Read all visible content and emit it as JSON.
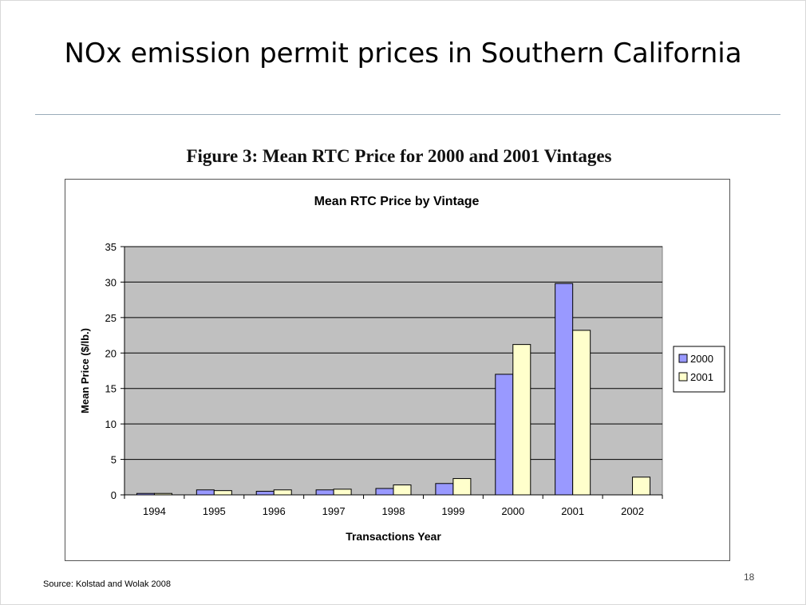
{
  "slide": {
    "title": "NOx emission permit prices in Southern California",
    "figure_title": "Figure 3: Mean RTC Price for 2000 and 2001 Vintages",
    "source": "Source: Kolstad and Wolak 2008",
    "page_number": "18"
  },
  "chart_data": {
    "type": "bar",
    "title": "Mean RTC Price by Vintage",
    "xlabel": "Transactions Year",
    "ylabel": "Mean Price ($/lb.)",
    "categories": [
      "1994",
      "1995",
      "1996",
      "1997",
      "1998",
      "1999",
      "2000",
      "2001",
      "2002"
    ],
    "series": [
      {
        "name": "2000",
        "color": "#9999ff",
        "values": [
          0.2,
          0.7,
          0.5,
          0.7,
          0.9,
          1.6,
          17.0,
          29.8,
          null
        ]
      },
      {
        "name": "2001",
        "color": "#ffffcc",
        "values": [
          0.2,
          0.6,
          0.7,
          0.8,
          1.4,
          2.3,
          21.2,
          23.2,
          2.5
        ]
      }
    ],
    "ylim": [
      0,
      35
    ],
    "yticks": [
      0,
      5,
      10,
      15,
      20,
      25,
      30,
      35
    ],
    "grid": true,
    "plot_background": "#c0c0c0",
    "legend": "right"
  }
}
